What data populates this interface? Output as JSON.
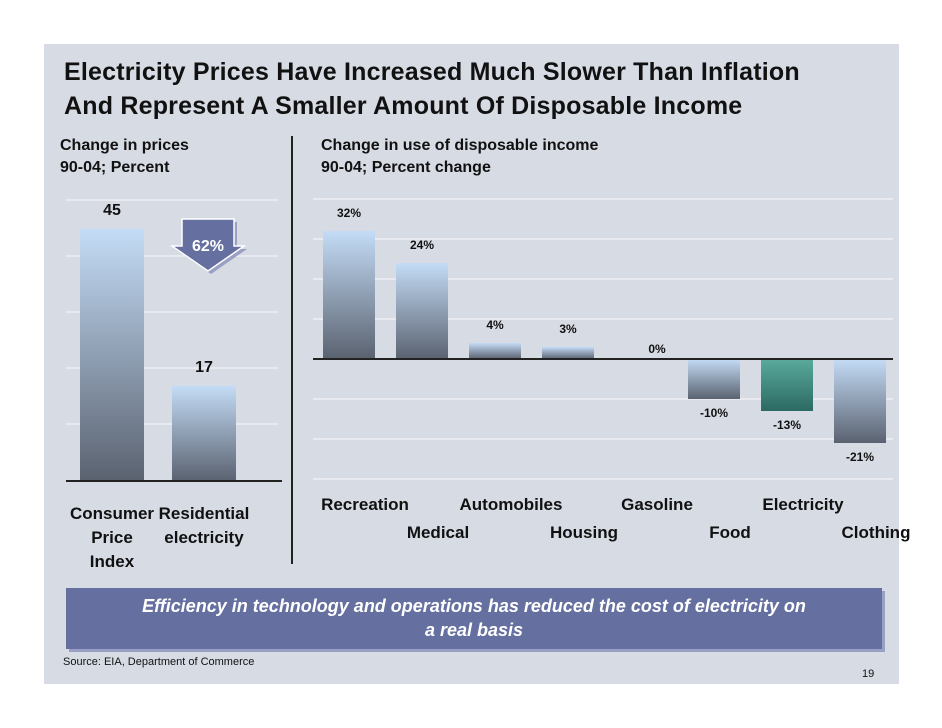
{
  "title": {
    "line1": "Electricity Prices Have Increased Much Slower Than Inflation",
    "line2": "And Represent A Smaller Amount Of Disposable Income"
  },
  "left_subtitle": {
    "line1": "Change in prices",
    "line2": "90-04; Percent"
  },
  "right_subtitle": {
    "line1": "Change in use of disposable income",
    "line2": "90-04; Percent change"
  },
  "callout": {
    "line1": "Efficiency in technology and operations has reduced the cost of electricity on",
    "line2": "a real basis"
  },
  "source": "Source: EIA, Department of Commerce",
  "page_number": "19",
  "colors": {
    "bar_top": "#c4dcf6",
    "bar_bottom": "#5a6270",
    "highlight_top": "#5aaa9c",
    "highlight_bottom": "#2c6a63",
    "arrow": "#6670a0"
  },
  "chart_data": [
    {
      "type": "bar",
      "title": "Change in prices",
      "subtitle": "90-04; Percent",
      "categories": [
        "Consumer Price Index",
        "Residential electricity"
      ],
      "category_lines": [
        [
          "Consumer",
          "Price",
          "Index"
        ],
        [
          "Residential",
          "electricity"
        ]
      ],
      "values": [
        45,
        17
      ],
      "value_labels": [
        "45",
        "17"
      ],
      "annotation": {
        "text": "62%",
        "shape": "down-arrow"
      },
      "ylim": [
        0,
        45
      ],
      "grid": true
    },
    {
      "type": "bar",
      "title": "Change in use of disposable income",
      "subtitle": "90-04; Percent change",
      "categories": [
        "Recreation",
        "Medical",
        "Automobiles",
        "Housing",
        "Gasoline",
        "Food",
        "Electricity",
        "Clothing"
      ],
      "values": [
        32,
        24,
        4,
        3,
        0,
        -10,
        -13,
        -21
      ],
      "value_labels": [
        "32%",
        "24%",
        "4%",
        "3%",
        "0%",
        "-10%",
        "-13%",
        "-21%"
      ],
      "highlight_index": 6,
      "ylim": [
        -30,
        32
      ],
      "grid": true
    }
  ]
}
